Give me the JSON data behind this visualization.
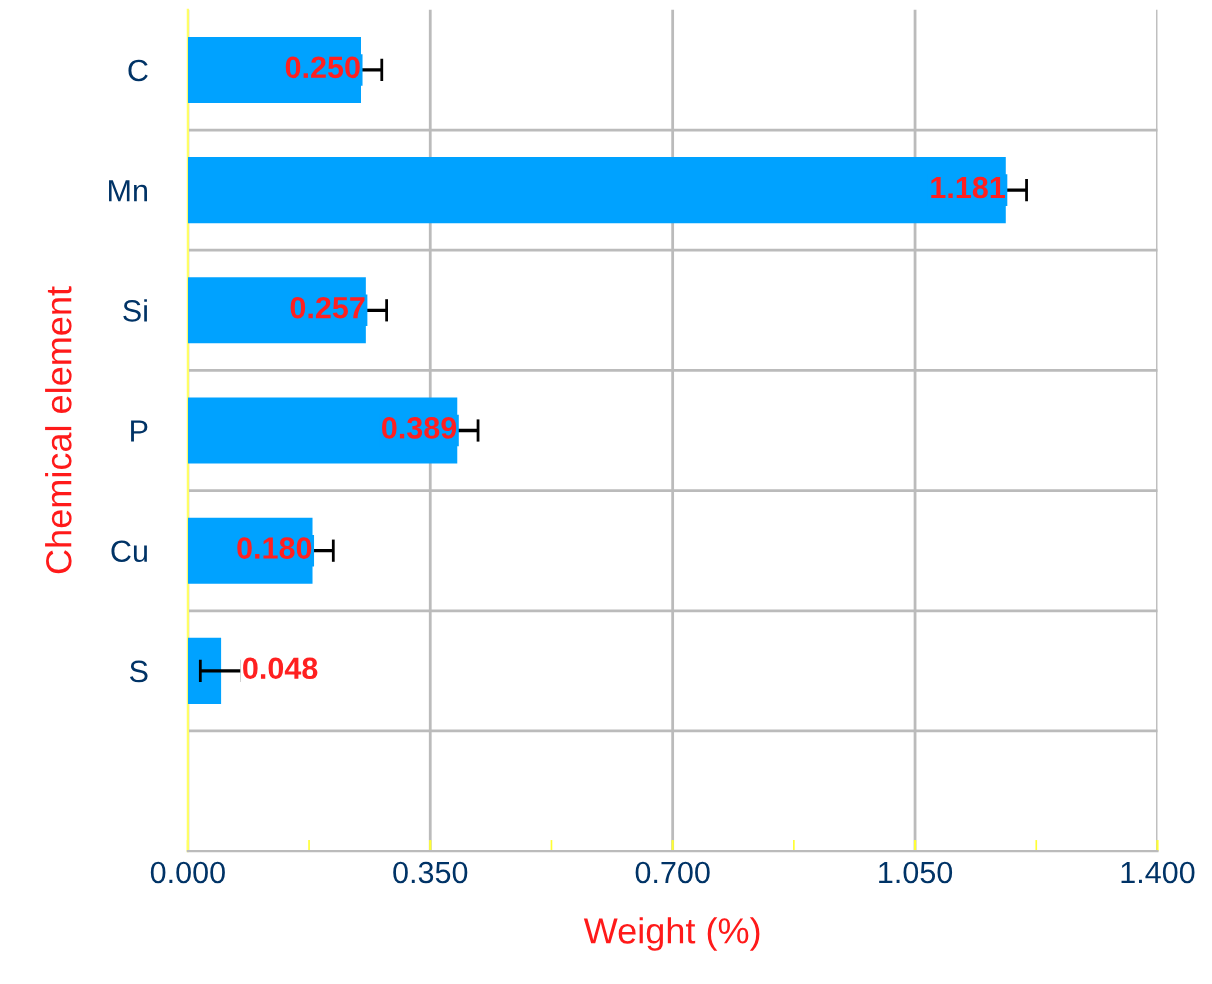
{
  "chart_data": {
    "type": "bar",
    "orientation": "horizontal",
    "xlabel": "Weight (%)",
    "ylabel": "Chemical element",
    "categories": [
      "C",
      "Mn",
      "Si",
      "P",
      "Cu",
      "S",
      null
    ],
    "values": [
      0.25,
      1.181,
      0.257,
      0.389,
      0.18,
      0.048,
      null
    ],
    "errors": [
      0.03,
      0.03,
      0.03,
      0.03,
      0.03,
      0.03,
      null
    ],
    "color": "#00a2ff",
    "value_labels": [
      "0.250",
      "1.181",
      "0.257",
      "0.389",
      "0.180",
      "0.048",
      null
    ],
    "xlim": [
      0,
      1.4
    ],
    "xticks": [
      {
        "value": 0,
        "label": "0.000"
      },
      {
        "value": 0.35,
        "label": "0.350"
      },
      {
        "value": 0.7,
        "label": "0.700"
      },
      {
        "value": 1.05,
        "label": "1.050"
      },
      {
        "value": 1.4,
        "label": "1.400"
      }
    ],
    "grid": true
  }
}
